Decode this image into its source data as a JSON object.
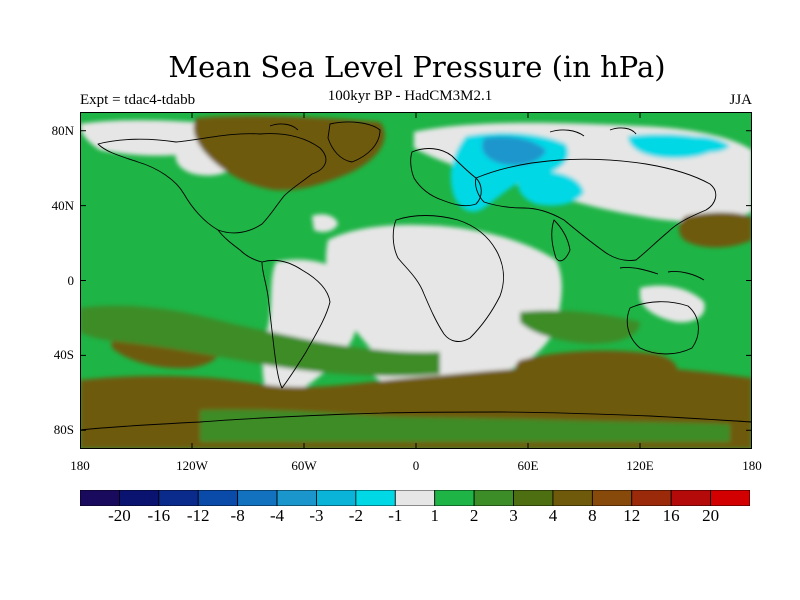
{
  "title": "Mean Sea Level Pressure (in hPa)",
  "subtitle": "100kyr BP - HadCM3M2.1",
  "experiment": "Expt = tdac4-tdabb",
  "season": "JJA",
  "map": {
    "lon_range": [
      -180,
      180
    ],
    "lat_range": [
      -90,
      90
    ],
    "lat_ticks": [
      {
        "value": 80,
        "label": "80N"
      },
      {
        "value": 40,
        "label": "40N"
      },
      {
        "value": 0,
        "label": "0"
      },
      {
        "value": -40,
        "label": "40S"
      },
      {
        "value": -80,
        "label": "80S"
      }
    ],
    "lon_ticks": [
      {
        "value": -180,
        "label": "180"
      },
      {
        "value": -120,
        "label": "120W"
      },
      {
        "value": -60,
        "label": "60W"
      },
      {
        "value": 0,
        "label": "0"
      },
      {
        "value": 60,
        "label": "60E"
      },
      {
        "value": 120,
        "label": "120E"
      },
      {
        "value": 180,
        "label": "180"
      }
    ]
  },
  "colorbar": {
    "labels": [
      "-20",
      "-16",
      "-12",
      "-8",
      "-4",
      "-3",
      "-2",
      "-1",
      "1",
      "2",
      "3",
      "4",
      "8",
      "12",
      "16",
      "20"
    ],
    "colors": [
      "#1a0a5e",
      "#0a1470",
      "#0a2a8c",
      "#0a4aa8",
      "#1272c0",
      "#1a96cc",
      "#0ab4d8",
      "#00d8e6",
      "#e6e6e6",
      "#1eb446",
      "#3c8c28",
      "#4e6e12",
      "#6e5a0a",
      "#884a0a",
      "#9a2a0a",
      "#b40a0a",
      "#d20000"
    ]
  },
  "colors": {
    "background_field": "#1eb446",
    "near_zero": "#e6e6e6",
    "positive_3": "#3c8c28",
    "positive_4": "#6e5a0a",
    "negative_1": "#00d8e6",
    "negative_2": "#1a96cc",
    "coastline": "#000000"
  }
}
